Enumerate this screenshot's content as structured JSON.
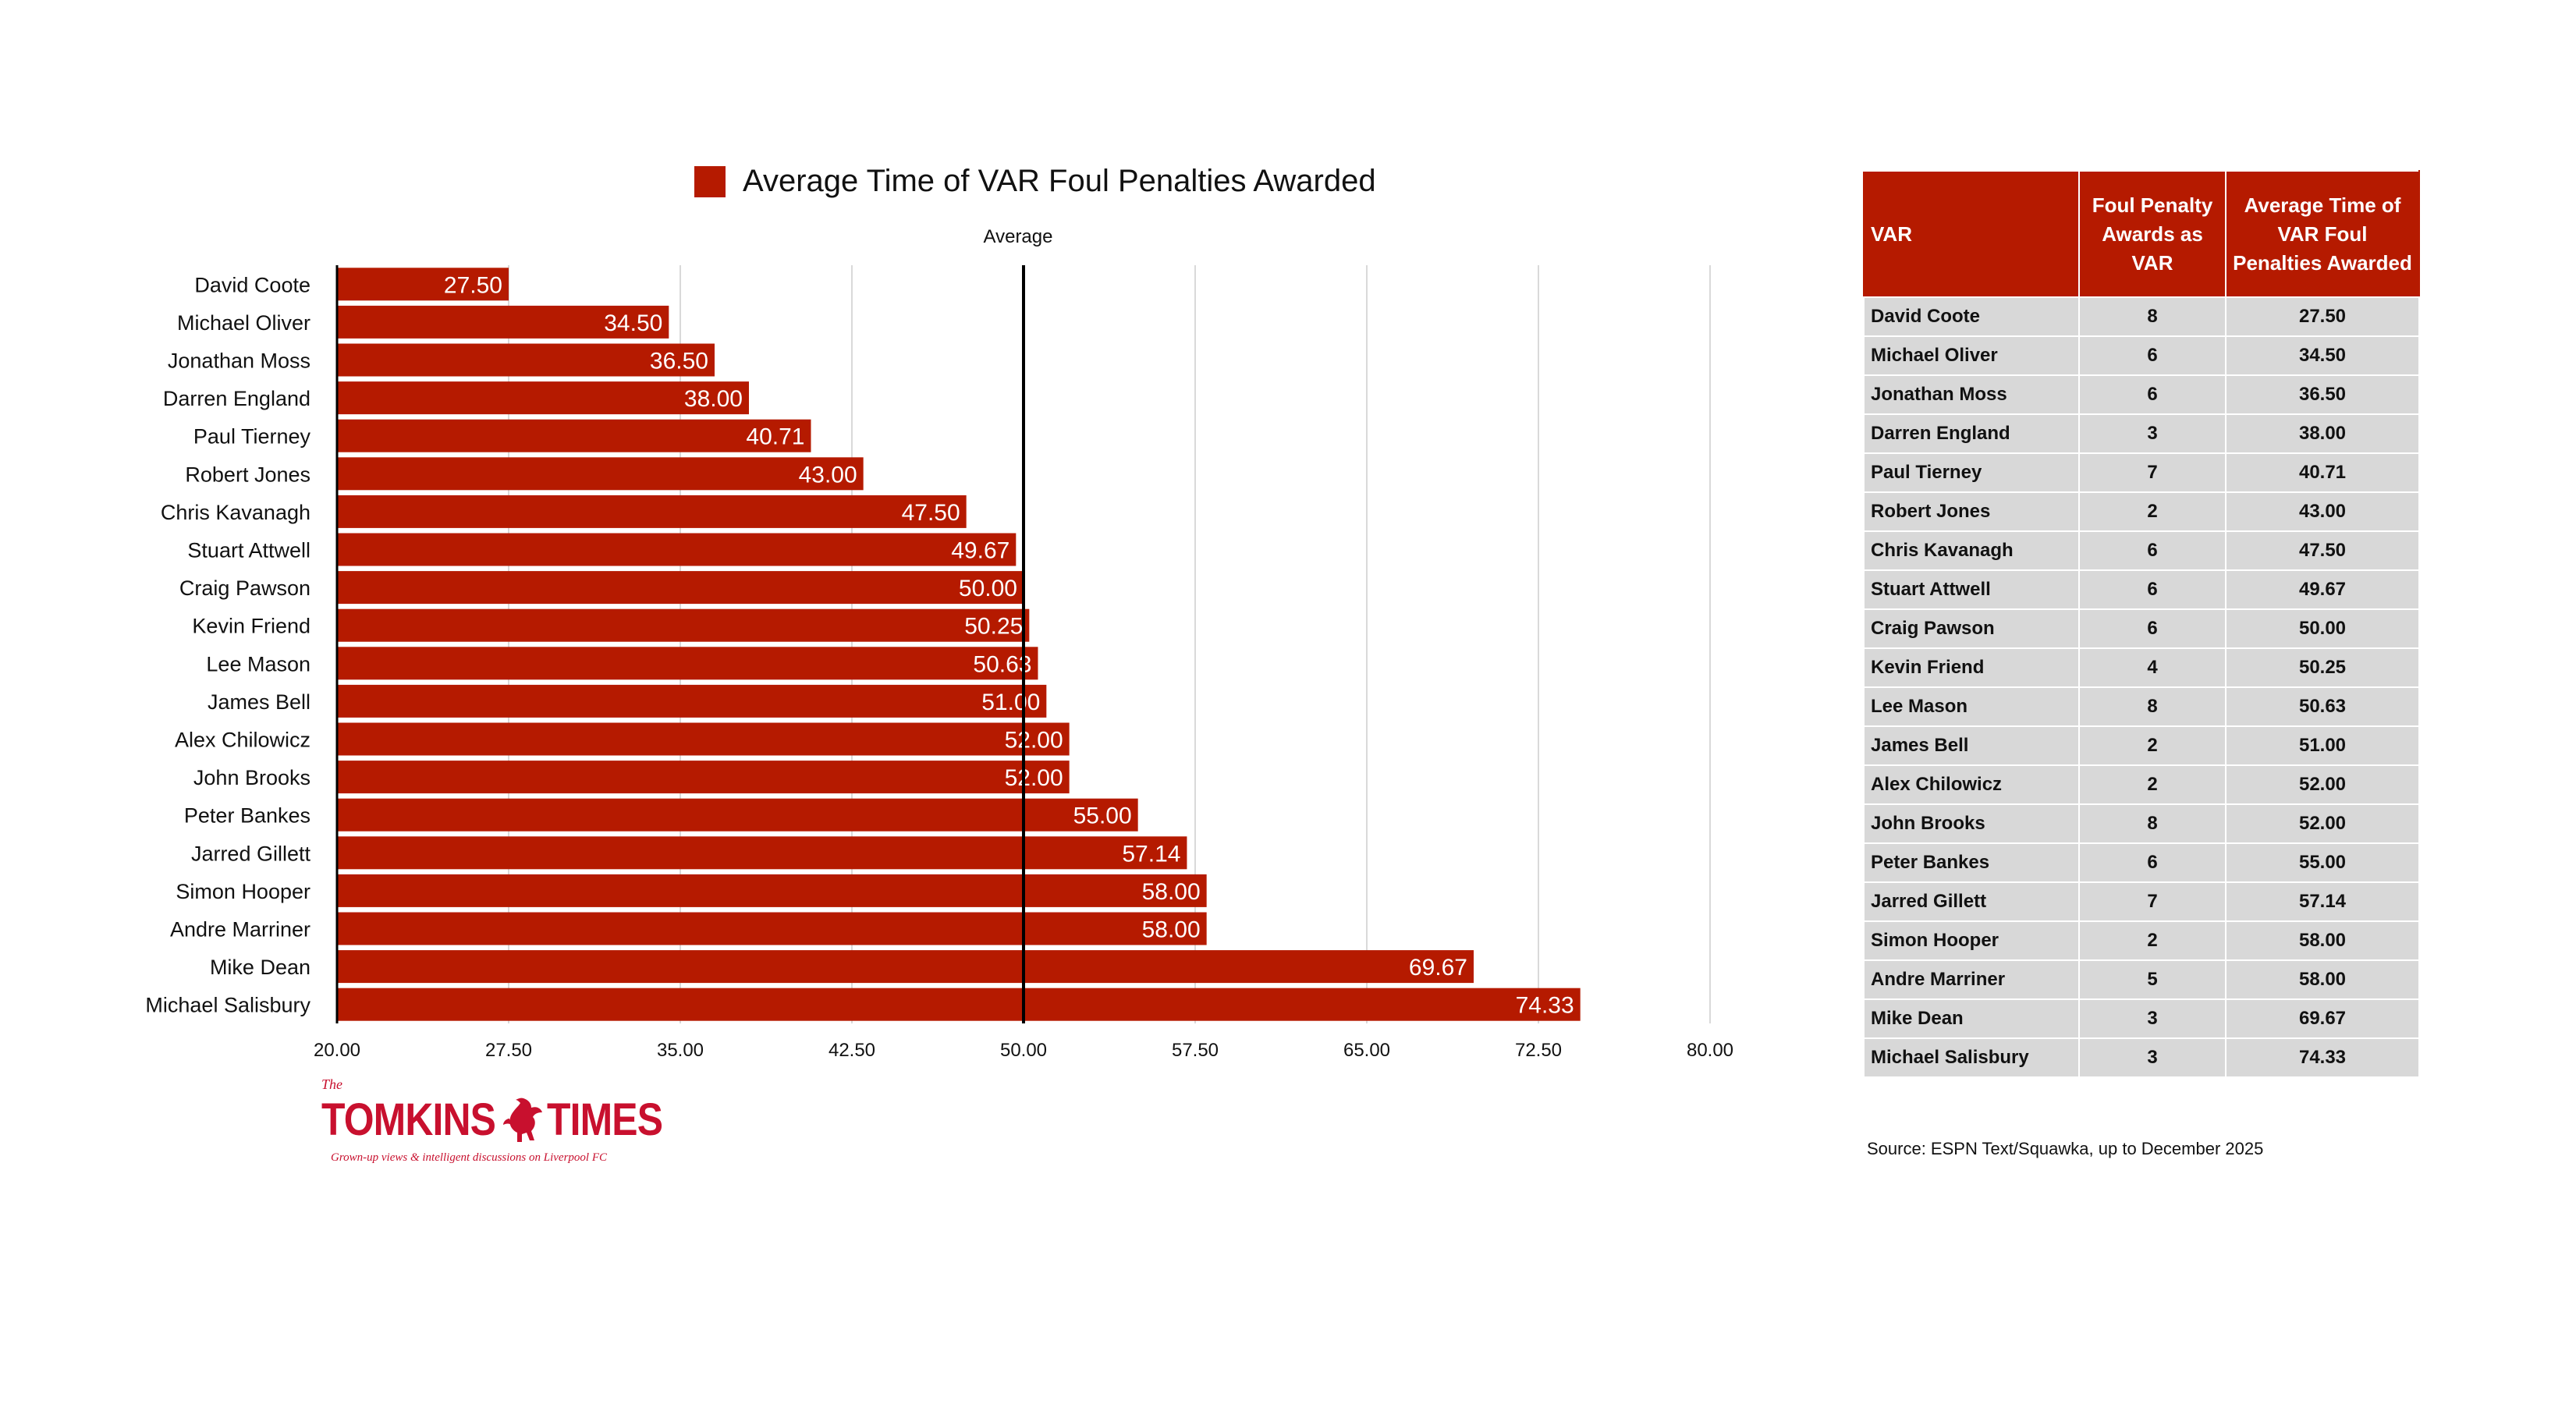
{
  "chart_data": {
    "type": "bar",
    "orientation": "horizontal",
    "title": "",
    "legend": {
      "entries": [
        "Average Time of VAR Foul Penalties Awarded"
      ],
      "placement": "top"
    },
    "series": [
      {
        "name": "Average Time of VAR Foul Penalties Awarded",
        "values": [
          27.5,
          34.5,
          36.5,
          38.0,
          40.71,
          43.0,
          47.5,
          49.67,
          50.0,
          50.25,
          50.63,
          51.0,
          52.0,
          52.0,
          55.0,
          57.14,
          58.0,
          58.0,
          69.67,
          74.33
        ]
      }
    ],
    "categories": [
      "David Coote",
      "Michael Oliver",
      "Jonathan Moss",
      "Darren England",
      "Paul Tierney",
      "Robert Jones",
      "Chris Kavanagh",
      "Stuart Attwell",
      "Craig Pawson",
      "Kevin Friend",
      "Lee Mason",
      "James Bell",
      "Alex Chilowicz",
      "John Brooks",
      "Peter Bankes",
      "Jarred Gillett",
      "Simon Hooper",
      "Andre Marriner",
      "Mike Dean",
      "Michael Salisbury"
    ],
    "data_labels": [
      "27.50",
      "34.50",
      "36.50",
      "38.00",
      "40.71",
      "43.00",
      "47.50",
      "49.67",
      "50.00",
      "50.25",
      "50.63",
      "51.00",
      "52.00",
      "52.00",
      "55.00",
      "57.14",
      "58.00",
      "58.00",
      "69.67",
      "74.33"
    ],
    "x_ticks": [
      20,
      27.5,
      35,
      42.5,
      50,
      57.5,
      65,
      72.5,
      80
    ],
    "x_tick_labels": [
      "20.00",
      "27.50",
      "35.00",
      "42.50",
      "50.00",
      "57.50",
      "65.00",
      "72.50",
      "80.00"
    ],
    "xlim": [
      20,
      80
    ],
    "grid": "vertical",
    "reference_line": {
      "label": "Average",
      "value": 50
    },
    "bar_color": "#b51a00",
    "label_color": "#ffffff"
  },
  "legend_label": "Average Time of VAR Foul Penalties Awarded",
  "average_label": "Average",
  "table": {
    "headers": [
      "VAR",
      "Foul Penalty Awards as VAR",
      "Average Time of VAR Foul Penalties Awarded"
    ],
    "rows": [
      [
        "David Coote",
        "8",
        "27.50"
      ],
      [
        "Michael Oliver",
        "6",
        "34.50"
      ],
      [
        "Jonathan Moss",
        "6",
        "36.50"
      ],
      [
        "Darren England",
        "3",
        "38.00"
      ],
      [
        "Paul Tierney",
        "7",
        "40.71"
      ],
      [
        "Robert Jones",
        "2",
        "43.00"
      ],
      [
        "Chris Kavanagh",
        "6",
        "47.50"
      ],
      [
        "Stuart Attwell",
        "6",
        "49.67"
      ],
      [
        "Craig Pawson",
        "6",
        "50.00"
      ],
      [
        "Kevin Friend",
        "4",
        "50.25"
      ],
      [
        "Lee Mason",
        "8",
        "50.63"
      ],
      [
        "James Bell",
        "2",
        "51.00"
      ],
      [
        "Alex Chilowicz",
        "2",
        "52.00"
      ],
      [
        "John Brooks",
        "8",
        "52.00"
      ],
      [
        "Peter Bankes",
        "6",
        "55.00"
      ],
      [
        "Jarred Gillett",
        "7",
        "57.14"
      ],
      [
        "Simon Hooper",
        "2",
        "58.00"
      ],
      [
        "Andre Marriner",
        "5",
        "58.00"
      ],
      [
        "Mike Dean",
        "3",
        "69.67"
      ],
      [
        "Michael Salisbury",
        "3",
        "74.33"
      ]
    ],
    "header_color": "#b51a00",
    "row_color": "#d8d8d8"
  },
  "source": "Source: ESPN Text/Squawka, up to December 2025",
  "logo": {
    "the": "The",
    "word1": "TOMKINS",
    "word2": "TIMES",
    "tagline": "Grown-up views & intelligent discussions on Liverpool FC",
    "color": "#c8102e"
  }
}
